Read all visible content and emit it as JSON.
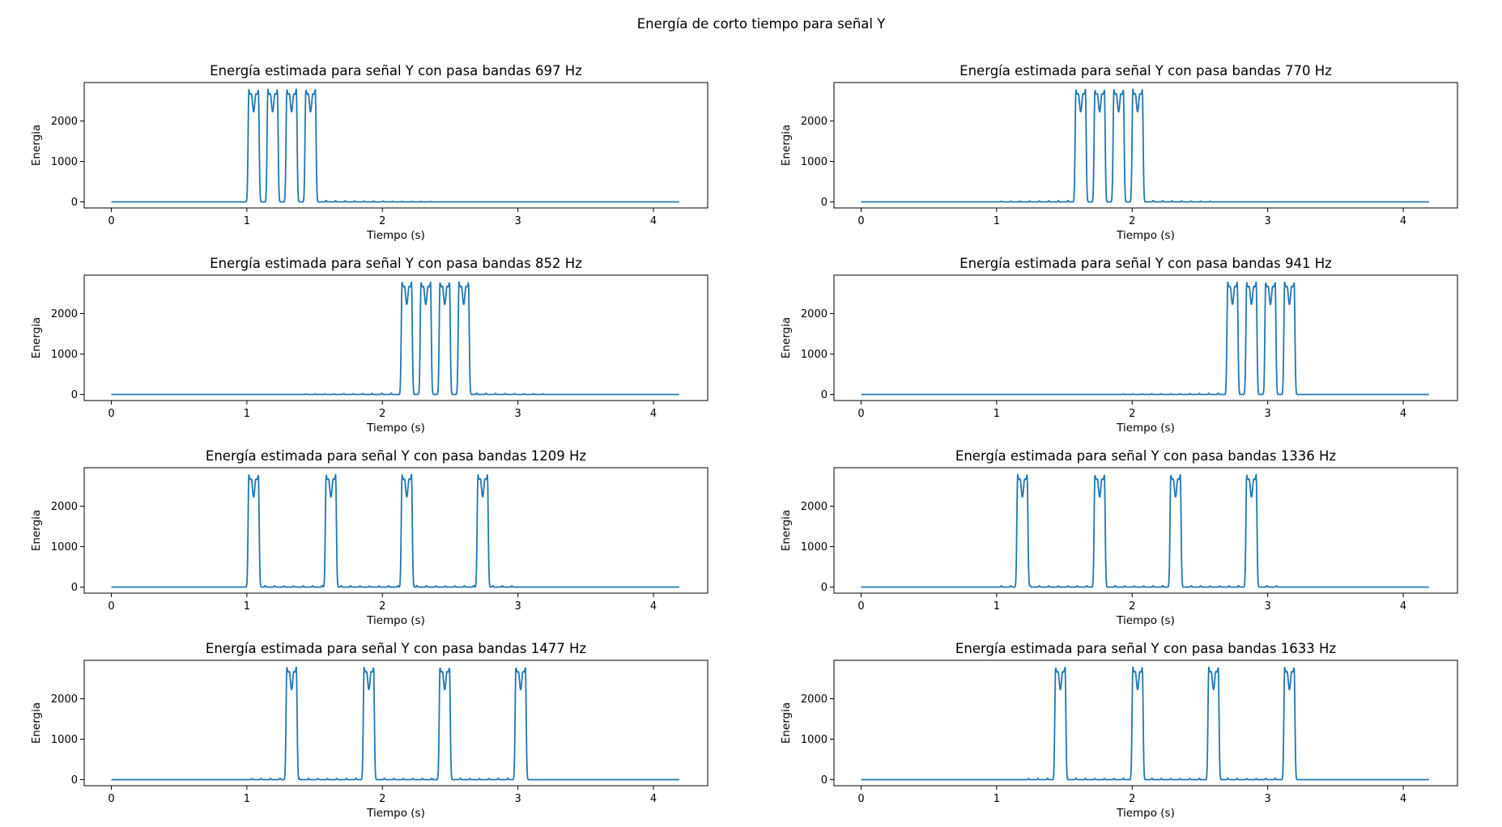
{
  "figure": {
    "suptitle": "Energía de corto tiempo para señal Y",
    "line_color": "#1f77b4"
  },
  "chart_data": [
    {
      "type": "line",
      "title": "Energía estimada para señal Y con pasa bandas 697 Hz",
      "xlabel": "Tiempo (s)",
      "ylabel": "Energia",
      "xlim": [
        -0.2,
        4.4
      ],
      "ylim": [
        -150,
        2950
      ],
      "xticks": [
        0,
        1,
        2,
        3,
        4
      ],
      "yticks": [
        0,
        1000,
        2000
      ],
      "series": [
        {
          "x": [
            0,
            4.19
          ],
          "bursts": [
            1.05,
            1.19,
            1.33,
            1.47
          ],
          "peak": 2780,
          "ripple_tail": [
            1.55,
            2.4
          ]
        }
      ]
    },
    {
      "type": "line",
      "title": "Energía estimada para señal Y con pasa bandas 770 Hz",
      "xlabel": "Tiempo (s)",
      "ylabel": "Energia",
      "xlim": [
        -0.2,
        4.4
      ],
      "ylim": [
        -150,
        2950
      ],
      "xticks": [
        0,
        1,
        2,
        3,
        4
      ],
      "yticks": [
        0,
        1000,
        2000
      ],
      "series": [
        {
          "x": [
            0,
            4.19
          ],
          "bursts": [
            1.62,
            1.76,
            1.9,
            2.04
          ],
          "peak": 2780,
          "ripple_tail": [
            1.0,
            2.6
          ]
        }
      ]
    },
    {
      "type": "line",
      "title": "Energía estimada para señal Y con pasa bandas 852 Hz",
      "xlabel": "Tiempo (s)",
      "ylabel": "Energia",
      "xlim": [
        -0.2,
        4.4
      ],
      "ylim": [
        -150,
        2950
      ],
      "xticks": [
        0,
        1,
        2,
        3,
        4
      ],
      "yticks": [
        0,
        1000,
        2000
      ],
      "series": [
        {
          "x": [
            0,
            4.19
          ],
          "bursts": [
            2.18,
            2.32,
            2.46,
            2.6
          ],
          "peak": 2780,
          "ripple_tail": [
            1.4,
            3.2
          ]
        }
      ]
    },
    {
      "type": "line",
      "title": "Energía estimada para señal Y con pasa bandas 941 Hz",
      "xlabel": "Tiempo (s)",
      "ylabel": "Energia",
      "xlim": [
        -0.2,
        4.4
      ],
      "ylim": [
        -150,
        2950
      ],
      "xticks": [
        0,
        1,
        2,
        3,
        4
      ],
      "yticks": [
        0,
        1000,
        2000
      ],
      "series": [
        {
          "x": [
            0,
            4.19
          ],
          "bursts": [
            2.74,
            2.88,
            3.02,
            3.16
          ],
          "peak": 2780,
          "ripple_tail": [
            1.9,
            2.7
          ]
        }
      ]
    },
    {
      "type": "line",
      "title": "Energía estimada para señal Y con pasa bandas 1209 Hz",
      "xlabel": "Tiempo (s)",
      "ylabel": "Energia",
      "xlim": [
        -0.2,
        4.4
      ],
      "ylim": [
        -150,
        2950
      ],
      "xticks": [
        0,
        1,
        2,
        3,
        4
      ],
      "yticks": [
        0,
        1000,
        2000
      ],
      "series": [
        {
          "x": [
            0,
            4.19
          ],
          "bursts": [
            1.05,
            1.62,
            2.18,
            2.74
          ],
          "peak": 2780,
          "ripple_tail": [
            1.1,
            3.0
          ]
        }
      ]
    },
    {
      "type": "line",
      "title": "Energía estimada para señal Y con pasa bandas 1336 Hz",
      "xlabel": "Tiempo (s)",
      "ylabel": "Energia",
      "xlim": [
        -0.2,
        4.4
      ],
      "ylim": [
        -150,
        2950
      ],
      "xticks": [
        0,
        1,
        2,
        3,
        4
      ],
      "yticks": [
        0,
        1000,
        2000
      ],
      "series": [
        {
          "x": [
            0,
            4.19
          ],
          "bursts": [
            1.19,
            1.76,
            2.32,
            2.88
          ],
          "peak": 2780,
          "ripple_tail": [
            1.0,
            3.1
          ]
        }
      ]
    },
    {
      "type": "line",
      "title": "Energía estimada para señal Y con pasa bandas 1477 Hz",
      "xlabel": "Tiempo (s)",
      "ylabel": "Energia",
      "xlim": [
        -0.2,
        4.4
      ],
      "ylim": [
        -150,
        2950
      ],
      "xticks": [
        0,
        1,
        2,
        3,
        4
      ],
      "yticks": [
        0,
        1000,
        2000
      ],
      "series": [
        {
          "x": [
            0,
            4.19
          ],
          "bursts": [
            1.33,
            1.9,
            2.46,
            3.02
          ],
          "peak": 2780,
          "ripple_tail": [
            1.0,
            3.1
          ]
        }
      ]
    },
    {
      "type": "line",
      "title": "Energía estimada para señal Y con pasa bandas 1633 Hz",
      "xlabel": "Tiempo (s)",
      "ylabel": "Energia",
      "xlim": [
        -0.2,
        4.4
      ],
      "ylim": [
        -150,
        2950
      ],
      "xticks": [
        0,
        1,
        2,
        3,
        4
      ],
      "yticks": [
        0,
        1000,
        2000
      ],
      "series": [
        {
          "x": [
            0,
            4.19
          ],
          "bursts": [
            1.47,
            2.04,
            2.6,
            3.16
          ],
          "peak": 2780,
          "ripple_tail": [
            1.2,
            3.2
          ]
        }
      ]
    }
  ]
}
